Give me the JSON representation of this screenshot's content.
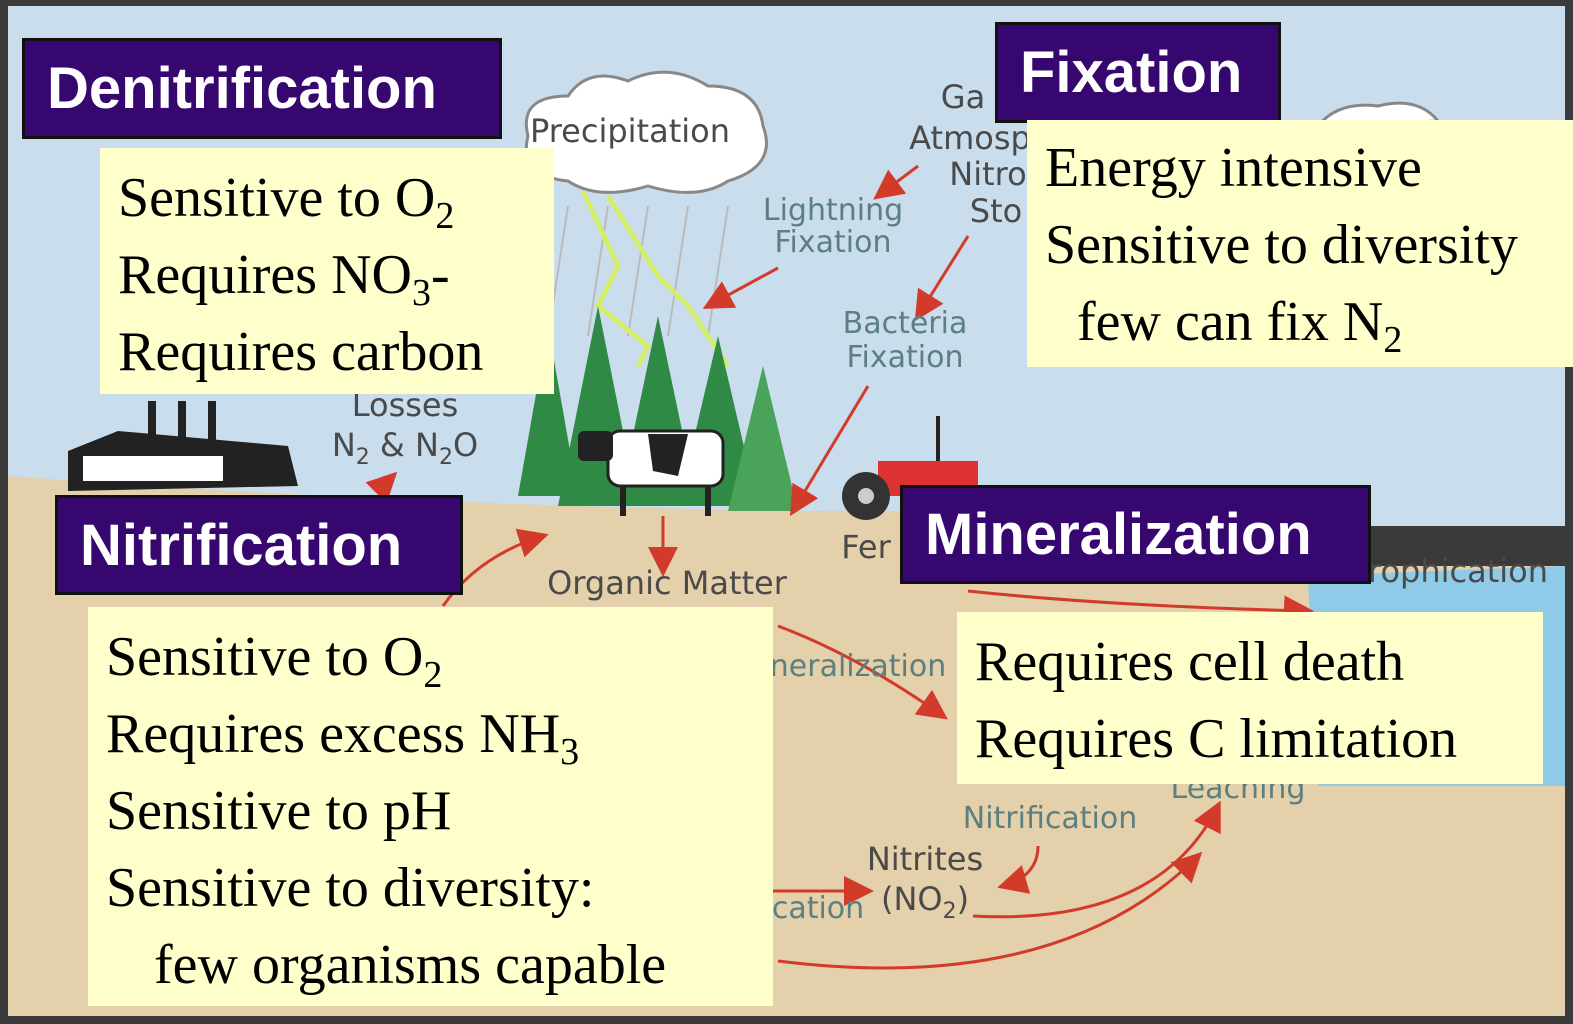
{
  "panels": {
    "denitrification": {
      "title": "Denitrification",
      "lines": [
        {
          "text": "Sensitive to O",
          "sub": "2"
        },
        {
          "text": "Requires NO",
          "sub": "3",
          "tail": "-"
        },
        {
          "text": "Requires carbon"
        }
      ]
    },
    "fixation": {
      "title": "Fixation",
      "lines": [
        {
          "text": "Energy intensive"
        },
        {
          "text": "Sensitive to diversity"
        },
        {
          "text": "few can fix N",
          "sub": "2",
          "indent": true
        }
      ]
    },
    "nitrification": {
      "title": "Nitrification",
      "lines": [
        {
          "text": "Sensitive to O",
          "sub": "2"
        },
        {
          "text": "Requires excess NH",
          "sub": "3"
        },
        {
          "text": "Sensitive to pH"
        },
        {
          "text": "Sensitive to diversity:"
        },
        {
          "text": "few organisms capable",
          "indent": true
        }
      ]
    },
    "mineralization": {
      "title": "Mineralization",
      "lines": [
        {
          "text": "Requires cell death"
        },
        {
          "text": "Requires C limitation"
        }
      ]
    }
  },
  "diagram_labels": {
    "precipitation": "Precipitation",
    "lightning_fixation": [
      "Lightning",
      "Fixation"
    ],
    "bacteria_fixation": [
      "Bacteria",
      "Fixation"
    ],
    "losses": "Losses",
    "losses_gases": [
      "N",
      "2",
      " & N",
      "2",
      "O"
    ],
    "organic_matter": "Organic Matter",
    "gas_fragments": [
      "Ga",
      "Atmosp",
      "Nitro",
      "Sto"
    ],
    "fertilizer_fragment": "Fer",
    "eutrophication_fragment": "rophication",
    "mineralization_fragment": "neralization",
    "leaching": "Leaching",
    "nitrification": "Nitrification",
    "nitrites": [
      "Nitrites",
      "(NO",
      "2",
      ")"
    ],
    "denitrification_fragment": "cation"
  }
}
